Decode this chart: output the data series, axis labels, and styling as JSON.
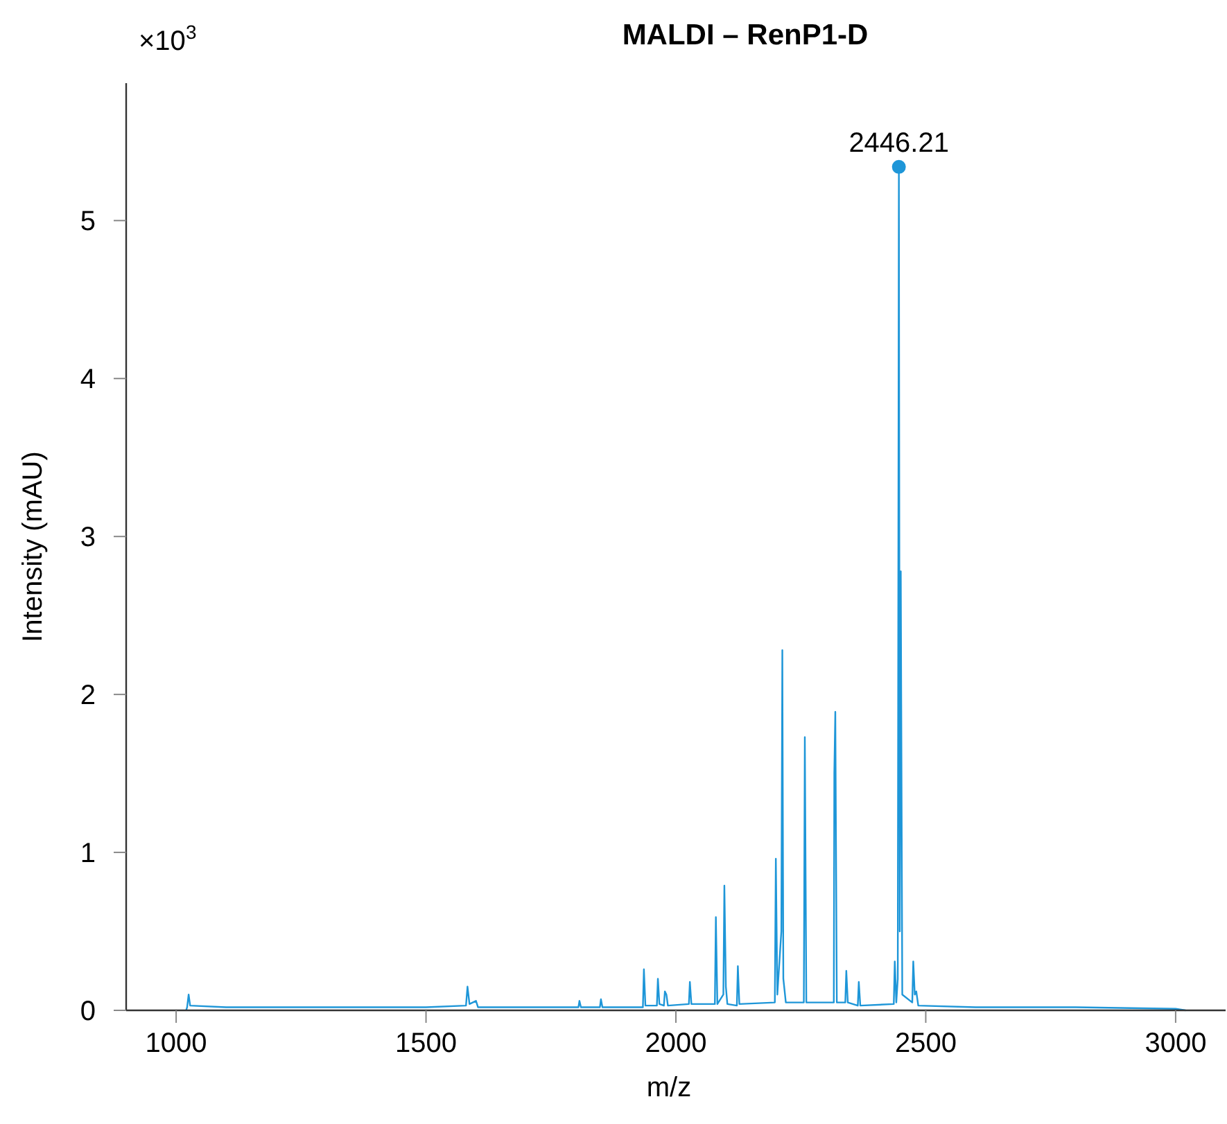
{
  "chart_data": {
    "type": "line",
    "title": "MALDI – RenP1-D",
    "xlabel": "m/z",
    "ylabel": "Intensity (mAU)",
    "annotations": [
      "×10$^{3}$",
      {
        "text": "2446.21",
        "x": 2446.21,
        "y": 5.34
      }
    ],
    "xlim": [
      900,
      3100
    ],
    "xticks": [
      1000,
      1500,
      2000,
      2500,
      3000
    ],
    "ylim": [
      0,
      5.87
    ],
    "yticks": [
      0,
      1,
      2,
      3,
      4,
      5
    ],
    "grid": false,
    "series": [
      {
        "color": "#1e96d8",
        "x": [
          1020,
          1022,
          1025,
          1028,
          1100,
          1300,
          1500,
          1580,
          1583,
          1587,
          1600,
          1604,
          1700,
          1805,
          1807,
          1810,
          1848,
          1850,
          1853,
          1934,
          1936,
          1939,
          1962,
          1964,
          1967,
          1976,
          1978,
          1981,
          1984,
          2026,
          2028,
          2031,
          2078,
          2080,
          2083,
          2095,
          2097,
          2100,
          2103,
          2122,
          2124,
          2127,
          2198,
          2200,
          2203,
          2211,
          2213,
          2215,
          2220,
          2256,
          2258,
          2261,
          2316,
          2317,
          2319,
          2322,
          2339,
          2341,
          2344,
          2364,
          2366,
          2369,
          2436,
          2438,
          2441,
          2444,
          2446.21,
          2448,
          2450,
          2453,
          2473,
          2475,
          2478,
          2481,
          2485,
          2600,
          2800,
          3000,
          3020
        ],
        "values": [
          0,
          0.02,
          0.1,
          0.03,
          0.02,
          0.02,
          0.02,
          0.03,
          0.15,
          0.04,
          0.06,
          0.02,
          0.02,
          0.02,
          0.06,
          0.02,
          0.02,
          0.07,
          0.02,
          0.02,
          0.26,
          0.03,
          0.03,
          0.2,
          0.04,
          0.03,
          0.12,
          0.1,
          0.03,
          0.04,
          0.18,
          0.04,
          0.04,
          0.59,
          0.04,
          0.1,
          0.79,
          0.15,
          0.04,
          0.03,
          0.28,
          0.04,
          0.05,
          0.96,
          0.1,
          0.5,
          2.28,
          0.2,
          0.05,
          0.05,
          1.73,
          0.05,
          0.05,
          1.5,
          1.89,
          0.05,
          0.05,
          0.25,
          0.05,
          0.03,
          0.18,
          0.03,
          0.04,
          0.31,
          0.05,
          0.2,
          5.34,
          0.5,
          2.78,
          0.1,
          0.05,
          0.31,
          0.1,
          0.12,
          0.03,
          0.02,
          0.02,
          0.01,
          0
        ]
      },
      {
        "type": "scatter",
        "color": "#1e96d8",
        "marker": "circle",
        "x": [
          2446.21
        ],
        "values": [
          5.34
        ]
      }
    ]
  }
}
